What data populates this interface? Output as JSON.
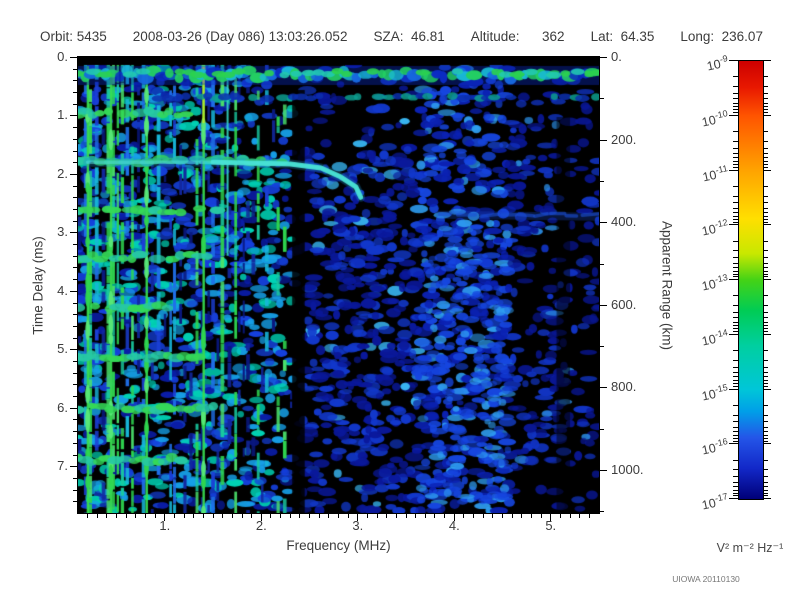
{
  "header": {
    "fields": [
      "Orbit: 5435",
      "2008-03-26 (Day 086) 13:03:26.052",
      "SZA:  46.81",
      "Altitude:      362",
      "Lat:  64.35",
      "Long:  236.07"
    ]
  },
  "footer": {
    "credit": "UIOWA 20110130"
  },
  "chart_data": {
    "type": "heatmap",
    "title": "Orbit: 5435  2008-03-26 (Day 086) 13:03:26.052  SZA: 46.81  Altitude: 362  Lat: 64.35  Long: 236.07",
    "description": "Radar sounder ionogram spectrogram: received spectral density vs frequency and time delay. Black background with blue noise blobs, dense green/cyan interference stripes below 2.3 MHz, a bright transmitter band near zero delay, a cyan ionospheric echo trace near 1.8 ms ending in a downward cusp near 3 MHz, and a faint surface reflection line near 2.7 ms (apparent range ~400 km) above 3.9 MHz.",
    "xlabel": "Frequency (MHz)",
    "x_range": [
      0.1,
      5.5
    ],
    "x_major_ticks": [
      1,
      2,
      3,
      4,
      5
    ],
    "x_major_labels": [
      "1.",
      "2.",
      "3.",
      "4.",
      "5."
    ],
    "x_minor_step": 0.1,
    "ylabel": "Time Delay (ms)",
    "y_range": [
      0,
      7.8
    ],
    "y_major_ticks": [
      0,
      1,
      2,
      3,
      4,
      5,
      6,
      7
    ],
    "y_major_labels": [
      "0.",
      "1.",
      "2.",
      "3.",
      "4.",
      "5.",
      "6.",
      "7."
    ],
    "y_minor_step": 0.2,
    "y2label": "Apparent Range (km)",
    "y2_range": [
      0,
      1104
    ],
    "y2_major_ticks": [
      0,
      200,
      400,
      600,
      800,
      1000
    ],
    "y2_major_labels": [
      "0.",
      "200.",
      "400.",
      "600.",
      "800.",
      "1000."
    ],
    "y2_minor_step": 100,
    "grid": false,
    "colorbar": {
      "units": "V² m⁻² Hz⁻¹",
      "exponent_ticks": [
        -9,
        -10,
        -11,
        -12,
        -13,
        -14,
        -15,
        -16,
        -17
      ],
      "gradient_stops": [
        [
          0.0,
          "#cc0000"
        ],
        [
          0.06,
          "#e81800"
        ],
        [
          0.125,
          "#ff5400"
        ],
        [
          0.25,
          "#ffa300"
        ],
        [
          0.36,
          "#ffdf00"
        ],
        [
          0.44,
          "#c8e800"
        ],
        [
          0.5,
          "#44d316"
        ],
        [
          0.57,
          "#00cc55"
        ],
        [
          0.65,
          "#00cfa0"
        ],
        [
          0.75,
          "#00c6d8"
        ],
        [
          0.8,
          "#009fe8"
        ],
        [
          0.86,
          "#2455e8"
        ],
        [
          0.93,
          "#1228c8"
        ],
        [
          1.0,
          "#000078"
        ]
      ]
    },
    "features": {
      "top_band": {
        "delay_ms": [
          0.15,
          0.52
        ],
        "freq_mhz": [
          0.1,
          5.5
        ]
      },
      "second_band": {
        "delay_ms": [
          0.63,
          0.78
        ],
        "freq_mhz": [
          0.85,
          5.5
        ]
      },
      "echo_trace": {
        "points_mhz_ms": [
          [
            0.2,
            1.8
          ],
          [
            1.5,
            1.8
          ],
          [
            2.3,
            1.83
          ],
          [
            2.62,
            1.9
          ],
          [
            2.82,
            2.05
          ],
          [
            2.98,
            2.22
          ],
          [
            3.03,
            2.4
          ]
        ],
        "bright_from_mhz": 1.55
      },
      "surface_echo": {
        "delay_ms": 2.7,
        "freq_mhz": [
          3.85,
          5.5
        ],
        "apparent_range_km": 400
      },
      "cyclotron_rows_ms": [
        0.96,
        1.78,
        2.62,
        3.42,
        4.27,
        5.13,
        6.0,
        6.89
      ],
      "rf_lines_mhz": [
        0.19,
        0.43,
        0.8,
        1.39
      ],
      "cyan_line": {
        "freq_mhz": 1.64,
        "delay_ms": [
          0.3,
          3.4
        ]
      },
      "quiet_column_mhz": [
        2.32,
        2.45
      ],
      "quiet_column2_mhz": [
        5.06,
        5.2
      ],
      "noisy_stripe_band_mhz": [
        0.1,
        2.3
      ],
      "enhanced_band": {
        "freq_mhz": [
          3.62,
          4.56
        ],
        "delay_ms": [
          2.9,
          7.6
        ]
      }
    },
    "noise": {
      "seed": 20110130,
      "blob_count": 3000
    }
  }
}
